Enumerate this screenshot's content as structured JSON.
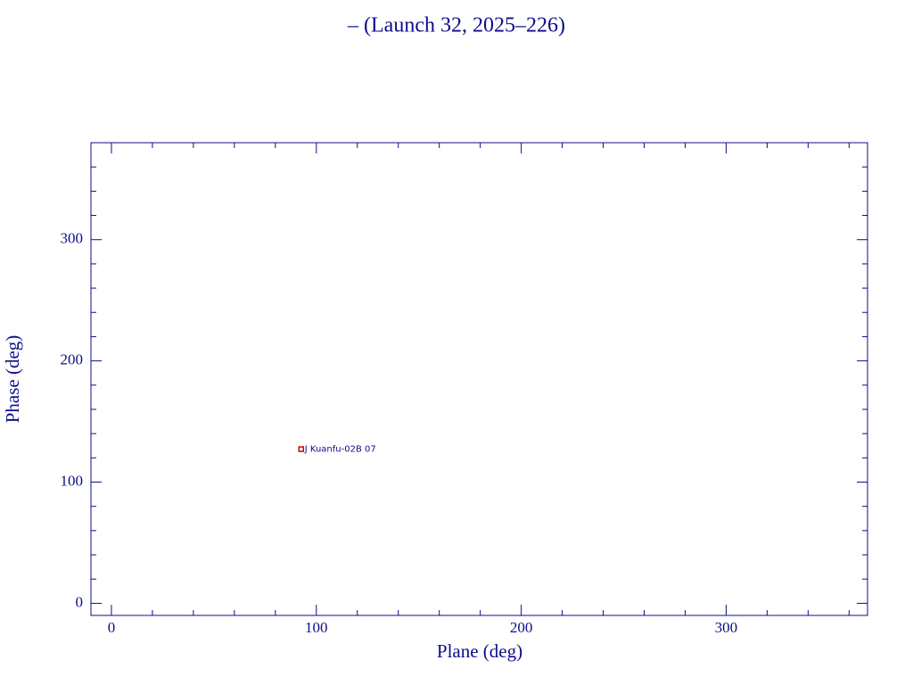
{
  "chart_data": {
    "type": "scatter",
    "title": "– (Launch 32, 2025–226)",
    "x_label": "Plane (deg)",
    "y_label": "Phase (deg)",
    "xlim": [
      -10,
      369
    ],
    "ylim": [
      -10,
      380
    ],
    "xticks": [
      0,
      100,
      200,
      300
    ],
    "yticks": [
      0,
      100,
      200,
      300
    ],
    "xminorticks": [
      20,
      40,
      60,
      80,
      120,
      140,
      160,
      180,
      220,
      240,
      260,
      280,
      320,
      340,
      360
    ],
    "yminorticks": [
      20,
      40,
      60,
      80,
      120,
      140,
      160,
      180,
      220,
      240,
      260,
      280,
      320,
      340,
      360
    ],
    "series": [
      {
        "color": "#d00000",
        "x": [
          92.6
        ],
        "values": [
          127.2
        ],
        "labels": [
          "J Kuanfu-02B 07"
        ]
      }
    ]
  }
}
